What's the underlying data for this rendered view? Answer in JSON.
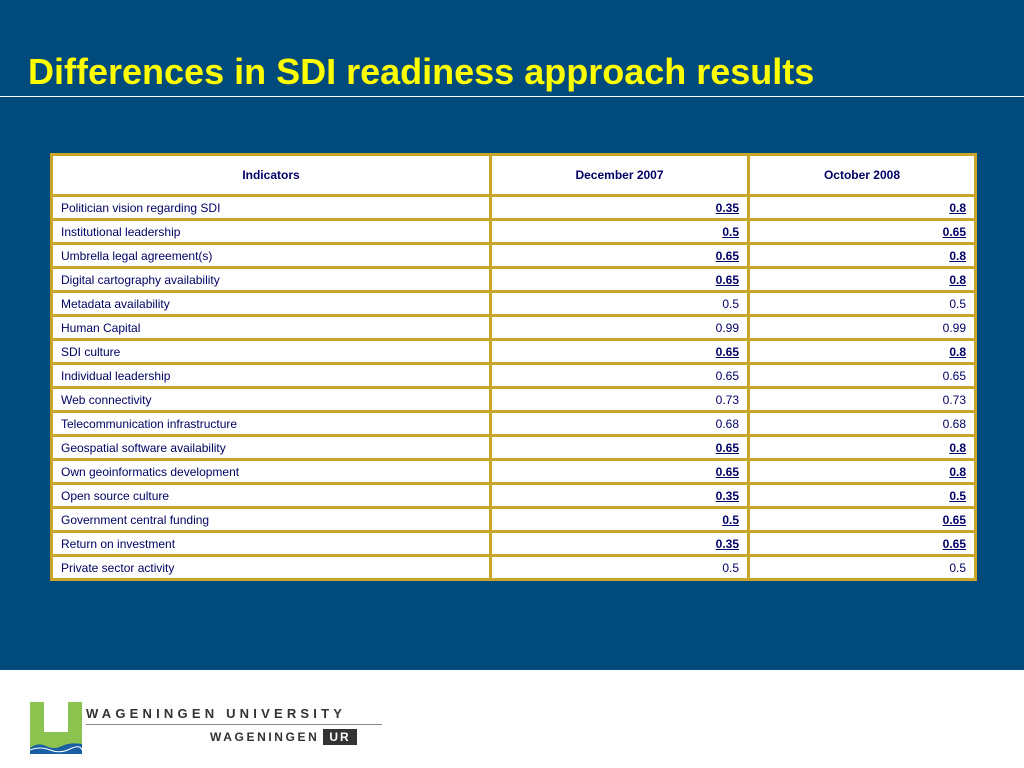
{
  "slide": {
    "title": "Differences in SDI readiness approach results"
  },
  "table": {
    "headers": [
      "Indicators",
      "December 2007",
      "October 2008"
    ],
    "rows": [
      {
        "indicator": "Politician vision regarding SDI",
        "dec2007": "0.35",
        "oct2008": "0.8",
        "highlighted": true
      },
      {
        "indicator": "Institutional leadership",
        "dec2007": "0.5",
        "oct2008": "0.65",
        "highlighted": true
      },
      {
        "indicator": "Umbrella legal agreement(s)",
        "dec2007": "0.65",
        "oct2008": "0.8",
        "highlighted": true
      },
      {
        "indicator": "Digital cartography availability",
        "dec2007": "0.65",
        "oct2008": "0.8",
        "highlighted": true
      },
      {
        "indicator": "Metadata availability",
        "dec2007": "0.5",
        "oct2008": "0.5",
        "highlighted": false
      },
      {
        "indicator": "Human Capital",
        "dec2007": "0.99",
        "oct2008": "0.99",
        "highlighted": false
      },
      {
        "indicator": "SDI culture",
        "dec2007": "0.65",
        "oct2008": "0.8",
        "highlighted": true
      },
      {
        "indicator": "Individual leadership",
        "dec2007": "0.65",
        "oct2008": "0.65",
        "highlighted": false
      },
      {
        "indicator": "Web connectivity",
        "dec2007": "0.73",
        "oct2008": "0.73",
        "highlighted": false
      },
      {
        "indicator": "Telecommunication infrastructure",
        "dec2007": "0.68",
        "oct2008": "0.68",
        "highlighted": false
      },
      {
        "indicator": "Geospatial software availability",
        "dec2007": "0.65",
        "oct2008": "0.8",
        "highlighted": true
      },
      {
        "indicator": "Own geoinformatics development",
        "dec2007": "0.65",
        "oct2008": "0.8",
        "highlighted": true
      },
      {
        "indicator": "Open source culture",
        "dec2007": "0.35",
        "oct2008": "0.5",
        "highlighted": true
      },
      {
        "indicator": "Government central funding",
        "dec2007": "0.5",
        "oct2008": "0.65",
        "highlighted": true
      },
      {
        "indicator": "Return on investment",
        "dec2007": "0.35",
        "oct2008": "0.65",
        "highlighted": true
      },
      {
        "indicator": "Private sector activity",
        "dec2007": "0.5",
        "oct2008": "0.5",
        "highlighted": false
      }
    ]
  },
  "footer": {
    "university_name": "WAGENINGEN UNIVERSITY",
    "sub_brand": "WAGENINGEN",
    "sub_brand_badge": "UR"
  },
  "colors": {
    "slide_background": "#004a7c",
    "title": "#ffff00",
    "table_border": "#c9a52a",
    "table_text": "#000066",
    "logo_green": "#8cc34f",
    "logo_blue": "#1a5fa3"
  },
  "icons": {
    "logo": "wageningen-logo-icon"
  }
}
